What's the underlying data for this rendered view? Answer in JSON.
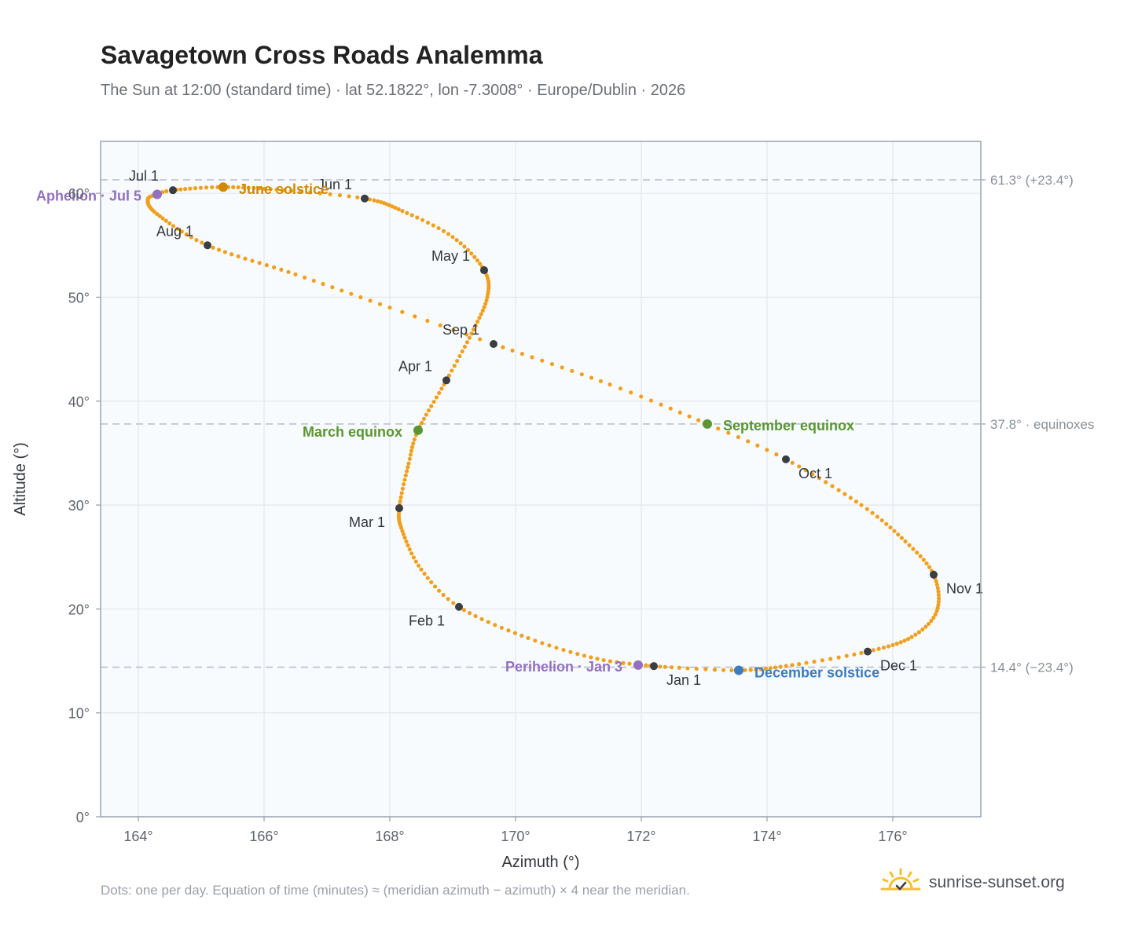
{
  "header": {
    "title": "Savagetown Cross Roads Analemma",
    "subtitle": "The Sun at 12:00 (standard time) · lat 52.1822°, lon -7.3008° · Europe/Dublin · 2026"
  },
  "footer": {
    "note": "Dots: one per day. Equation of time (minutes) ≈ (meridian azimuth − azimuth) × 4 near the meridian.",
    "brand": "sunrise-sunset.org"
  },
  "colors": {
    "path": "#f0a020",
    "month_dot": "#3a3d42",
    "solstice_june": "#d08a00",
    "solstice_december": "#3d7cc0",
    "equinox": "#5a9632",
    "apsis": "#9370c0",
    "reference_line": "#b4bcc8",
    "plot_background": "#f8fbfd",
    "grid": "#e4e8ee"
  },
  "chart_data": {
    "type": "scatter",
    "title": "Savagetown Cross Roads Analemma",
    "xlabel": "Azimuth (°)",
    "ylabel": "Altitude (°)",
    "xlim": [
      163.4,
      177.4
    ],
    "ylim": [
      0,
      65
    ],
    "grid": true,
    "x_ticks": [
      {
        "value": 164,
        "label": "164°"
      },
      {
        "value": 166,
        "label": "166°"
      },
      {
        "value": 168,
        "label": "168°"
      },
      {
        "value": 170,
        "label": "170°"
      },
      {
        "value": 172,
        "label": "172°"
      },
      {
        "value": 174,
        "label": "174°"
      },
      {
        "value": 176,
        "label": "176°"
      }
    ],
    "y_ticks": [
      {
        "value": 0,
        "label": "0°"
      },
      {
        "value": 10,
        "label": "10°"
      },
      {
        "value": 20,
        "label": "20°"
      },
      {
        "value": 30,
        "label": "30°"
      },
      {
        "value": 40,
        "label": "40°"
      },
      {
        "value": 50,
        "label": "50°"
      },
      {
        "value": 60,
        "label": "60°"
      }
    ],
    "reference_lines": [
      {
        "altitude": 61.3,
        "label": "61.3° (+23.4°)"
      },
      {
        "altitude": 37.8,
        "label": "37.8° · equinoxes"
      },
      {
        "altitude": 14.4,
        "label": "14.4° (−23.4°)"
      }
    ],
    "months": [
      {
        "label": "Jan 1",
        "azimuth": 172.2,
        "altitude": 14.5,
        "dx": 16,
        "dy": 24,
        "anchor": "start"
      },
      {
        "label": "Feb 1",
        "azimuth": 169.1,
        "altitude": 20.2,
        "dx": -18,
        "dy": 24,
        "anchor": "end"
      },
      {
        "label": "Mar 1",
        "azimuth": 168.15,
        "altitude": 29.7,
        "dx": -18,
        "dy": 24,
        "anchor": "end"
      },
      {
        "label": "Apr 1",
        "azimuth": 168.9,
        "altitude": 42.0,
        "dx": -18,
        "dy": -12,
        "anchor": "end"
      },
      {
        "label": "May 1",
        "azimuth": 169.5,
        "altitude": 52.6,
        "dx": -18,
        "dy": -12,
        "anchor": "end"
      },
      {
        "label": "Jun 1",
        "azimuth": 167.6,
        "altitude": 59.5,
        "dx": -16,
        "dy": -12,
        "anchor": "end"
      },
      {
        "label": "Jul 1",
        "azimuth": 164.55,
        "altitude": 60.3,
        "dx": -18,
        "dy": -12,
        "anchor": "end"
      },
      {
        "label": "Aug 1",
        "azimuth": 165.1,
        "altitude": 55.0,
        "dx": -18,
        "dy": -12,
        "anchor": "end"
      },
      {
        "label": "Sep 1",
        "azimuth": 169.65,
        "altitude": 45.5,
        "dx": -18,
        "dy": -12,
        "anchor": "end"
      },
      {
        "label": "Oct 1",
        "azimuth": 174.3,
        "altitude": 34.4,
        "dx": 16,
        "dy": 24,
        "anchor": "start"
      },
      {
        "label": "Nov 1",
        "azimuth": 176.65,
        "altitude": 23.3,
        "dx": 16,
        "dy": 24,
        "anchor": "start"
      },
      {
        "label": "Dec 1",
        "azimuth": 175.6,
        "altitude": 15.9,
        "dx": 16,
        "dy": 24,
        "anchor": "start"
      }
    ],
    "events": [
      {
        "label": "June solstice",
        "azimuth": 165.35,
        "altitude": 60.6,
        "color": "#d08a00",
        "dx": 20,
        "dy": 9,
        "anchor": "start"
      },
      {
        "label": "December solstice",
        "azimuth": 173.55,
        "altitude": 14.1,
        "color": "#3d7cc0",
        "dx": 20,
        "dy": 9,
        "anchor": "start"
      },
      {
        "label": "March equinox",
        "azimuth": 168.45,
        "altitude": 37.2,
        "color": "#5a9632",
        "dx": -20,
        "dy": 8,
        "anchor": "end"
      },
      {
        "label": "September equinox",
        "azimuth": 173.05,
        "altitude": 37.8,
        "color": "#5a9632",
        "dx": 20,
        "dy": 8,
        "anchor": "start"
      },
      {
        "label": "Perihelion · Jan 3",
        "azimuth": 171.95,
        "altitude": 14.6,
        "color": "#9370c0",
        "dx": -20,
        "dy": 8,
        "anchor": "end"
      },
      {
        "label": "Aphelion · Jul 5",
        "azimuth": 164.3,
        "altitude": 59.9,
        "color": "#9370c0",
        "dx": -20,
        "dy": 8,
        "anchor": "end"
      }
    ],
    "path_keypoints": [
      [
        0,
        172.2,
        14.5
      ],
      [
        10,
        171.3,
        15.2
      ],
      [
        20,
        170.2,
        17.2
      ],
      [
        31,
        169.1,
        20.2
      ],
      [
        40,
        168.5,
        23.8
      ],
      [
        50,
        168.2,
        27.5
      ],
      [
        59,
        168.15,
        29.7
      ],
      [
        70,
        168.3,
        34.0
      ],
      [
        78,
        168.45,
        37.2
      ],
      [
        90,
        168.9,
        42.0
      ],
      [
        100,
        169.3,
        46.5
      ],
      [
        110,
        169.55,
        50.0
      ],
      [
        120,
        169.5,
        52.6
      ],
      [
        130,
        169.0,
        55.8
      ],
      [
        140,
        168.2,
        58.3
      ],
      [
        151,
        167.6,
        59.5
      ],
      [
        160,
        166.3,
        60.3
      ],
      [
        171,
        165.35,
        60.6
      ],
      [
        181,
        164.55,
        60.3
      ],
      [
        185,
        164.3,
        59.9
      ],
      [
        190,
        164.15,
        59.4
      ],
      [
        200,
        164.3,
        58.0
      ],
      [
        212,
        165.1,
        55.0
      ],
      [
        225,
        166.5,
        52.2
      ],
      [
        235,
        168.0,
        49.0
      ],
      [
        243,
        169.65,
        45.5
      ],
      [
        255,
        171.5,
        41.6
      ],
      [
        265,
        173.05,
        37.8
      ],
      [
        273,
        174.3,
        34.4
      ],
      [
        285,
        175.5,
        30.0
      ],
      [
        295,
        176.2,
        26.5
      ],
      [
        304,
        176.65,
        23.3
      ],
      [
        315,
        176.7,
        19.8
      ],
      [
        324,
        176.3,
        17.3
      ],
      [
        334,
        175.6,
        15.9
      ],
      [
        344,
        174.4,
        14.6
      ],
      [
        354,
        173.55,
        14.1
      ],
      [
        364,
        172.3,
        14.45
      ]
    ]
  }
}
